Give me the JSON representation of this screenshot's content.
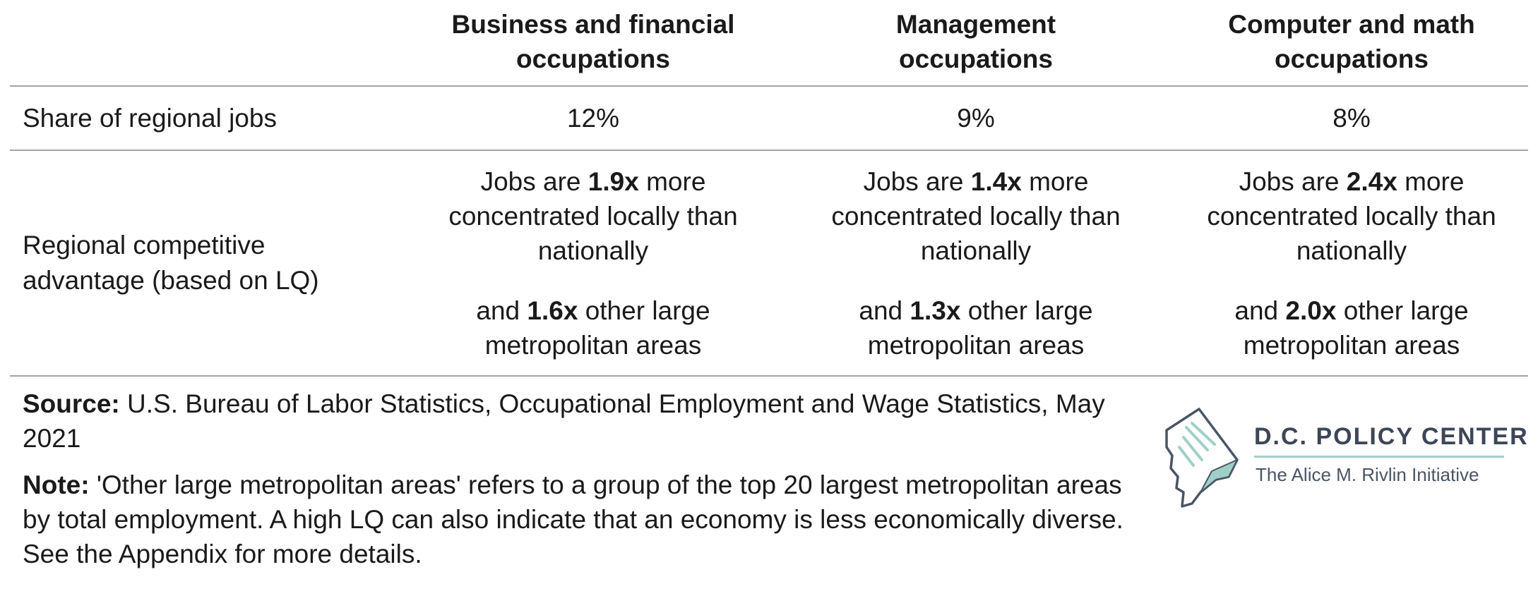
{
  "table": {
    "columns": [
      {
        "header_line1": "Business and financial",
        "header_line2": "occupations"
      },
      {
        "header_line1": "Management",
        "header_line2": "occupations"
      },
      {
        "header_line1": "Computer and math",
        "header_line2": "occupations"
      }
    ],
    "share_row": {
      "label": "Share of regional jobs",
      "values": [
        "12%",
        "9%",
        "8%"
      ]
    },
    "advantage_row": {
      "label_line1": "Regional competitive",
      "label_line2": "advantage (based on LQ)",
      "cells": [
        {
          "pre": "Jobs are ",
          "national_multiplier": "1.9x",
          "post": " more concentrated locally than nationally",
          "and": "and ",
          "metro_multiplier": "1.6x",
          "metro_post": " other large metropolitan areas"
        },
        {
          "pre": "Jobs are ",
          "national_multiplier": "1.4x",
          "post": " more concentrated locally than nationally",
          "and": "and ",
          "metro_multiplier": "1.3x",
          "metro_post": " other large metropolitan areas"
        },
        {
          "pre": "Jobs are ",
          "national_multiplier": "2.4x",
          "post": " more concentrated locally than nationally",
          "and": "and ",
          "metro_multiplier": "2.0x",
          "metro_post": " other large metropolitan areas"
        }
      ]
    }
  },
  "footer": {
    "source_label": "Source:",
    "source_text": " U.S. Bureau of Labor Statistics, Occupational Employment and Wage Statistics, May 2021",
    "note_label": "Note:",
    "note_text": " 'Other large metropolitan areas' refers to a group of the top 20 largest metropolitan areas by total employment. A high LQ can also indicate that an economy is less economically diverse. See the Appendix for more details."
  },
  "logo": {
    "name": "D.C. POLICY CENTER",
    "subtitle": "The Alice M. Rivlin Initiative",
    "accent_color": "#9fd0c7",
    "outline_color": "#4a5565"
  }
}
